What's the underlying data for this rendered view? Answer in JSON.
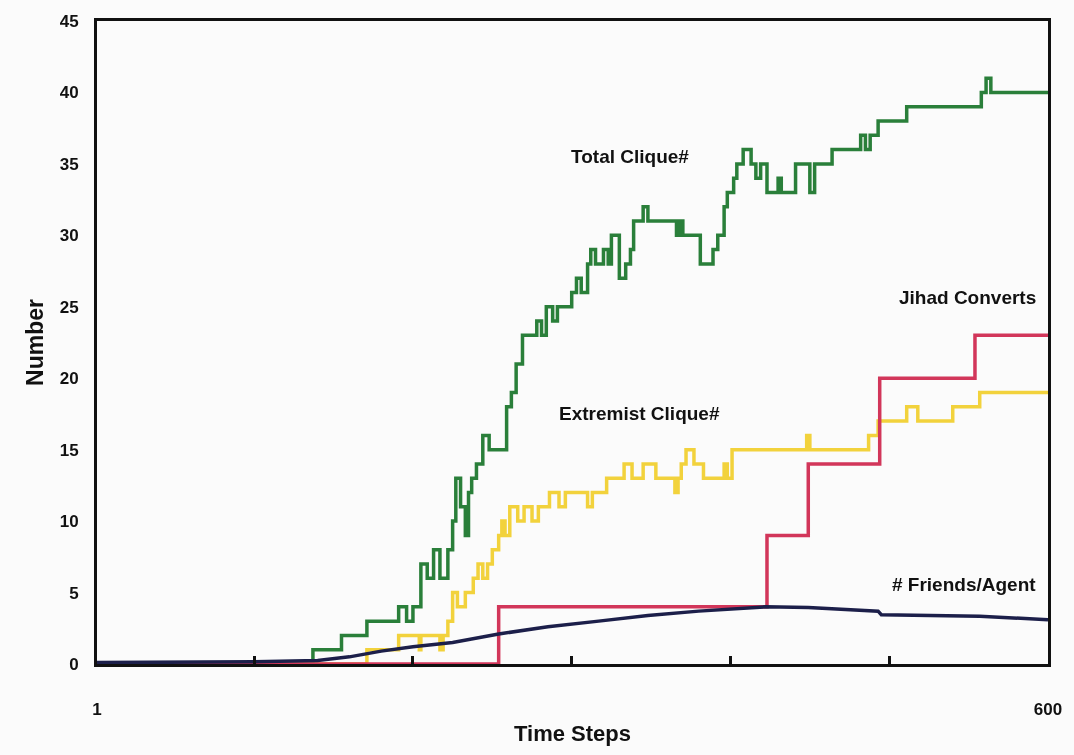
{
  "chart_data": {
    "type": "step",
    "xlabel": "Time Steps",
    "ylabel": "Number",
    "xlim": [
      1,
      600
    ],
    "xticks": [
      {
        "value": 1,
        "label": "1"
      },
      {
        "value": 100,
        "label": null
      },
      {
        "value": 200,
        "label": null
      },
      {
        "value": 300,
        "label": null
      },
      {
        "value": 400,
        "label": null
      },
      {
        "value": 500,
        "label": null
      },
      {
        "value": 600,
        "label": "600"
      }
    ],
    "ylim": [
      0,
      45
    ],
    "yticks": [
      0,
      5,
      10,
      15,
      20,
      25,
      30,
      35,
      40,
      45
    ],
    "legend": false,
    "marker": "none",
    "line_style": "solid",
    "series": [
      {
        "name": "Total Clique#",
        "color": "#2a7f3a",
        "x": [
          1,
          137,
          155,
          171,
          191,
          196,
          200,
          205,
          209,
          213,
          217,
          222,
          225,
          227,
          230,
          233,
          235,
          237,
          240,
          244,
          248,
          259,
          262,
          265,
          269,
          278,
          281,
          284,
          288,
          291,
          300,
          303,
          306,
          310,
          312,
          315,
          320,
          323,
          325,
          330,
          334,
          337,
          339,
          345,
          348,
          366,
          368,
          370,
          381,
          384,
          389,
          392,
          396,
          398,
          402,
          404,
          408,
          413,
          416,
          419,
          423,
          430,
          432,
          441,
          450,
          453,
          464,
          482,
          485,
          488,
          493,
          511,
          558,
          561,
          564,
          600
        ],
        "values": [
          0,
          1,
          2,
          3,
          4,
          3,
          4,
          7,
          6,
          8,
          6,
          8,
          10,
          13,
          11,
          9,
          12,
          13,
          14,
          16,
          15,
          18,
          19,
          21,
          23,
          24,
          23,
          25,
          24,
          25,
          26,
          27,
          26,
          28,
          29,
          28,
          29,
          28,
          30,
          27,
          28,
          29,
          31,
          32,
          31,
          30,
          31,
          30,
          28,
          28,
          29,
          30,
          32,
          33,
          34,
          35,
          36,
          35,
          34,
          35,
          33,
          34,
          33,
          35,
          33,
          35,
          36,
          37,
          36,
          37,
          38,
          39,
          40,
          41,
          40,
          40
        ]
      },
      {
        "name": "Extremist Clique#",
        "color": "#f2d23c",
        "x": [
          1,
          171,
          191,
          204,
          205,
          217,
          219,
          222,
          225,
          228,
          233,
          238,
          241,
          244,
          247,
          250,
          254,
          256,
          258,
          261,
          266,
          270,
          275,
          279,
          286,
          292,
          296,
          310,
          313,
          322,
          333,
          338,
          345,
          349,
          353,
          365,
          367,
          369,
          372,
          377,
          383,
          396,
          398,
          401,
          448,
          450,
          487,
          493,
          511,
          518,
          540,
          557,
          600
        ],
        "values": [
          0,
          1,
          2,
          1,
          2,
          1,
          2,
          3,
          5,
          4,
          5,
          6,
          7,
          6,
          7,
          8,
          9,
          10,
          9,
          11,
          10,
          11,
          10,
          11,
          12,
          11,
          12,
          11,
          12,
          13,
          14,
          13,
          14,
          14,
          13,
          12,
          13,
          14,
          15,
          14,
          13,
          14,
          13,
          15,
          16,
          15,
          16,
          17,
          18,
          17,
          18,
          19,
          19
        ]
      },
      {
        "name": "Jihad Converts",
        "color": "#d2365a",
        "x": [
          1,
          254,
          423,
          449,
          494,
          554,
          600
        ],
        "values": [
          0,
          4,
          9,
          14,
          20,
          23,
          23
        ]
      },
      {
        "name": "# Friends/Agent",
        "color": "#1c1f4a",
        "type": "line",
        "x": [
          1,
          100,
          140,
          160,
          180,
          200,
          225,
          254,
          285,
          317,
          348,
          380,
          422,
          449,
          493,
          495,
          557,
          600
        ],
        "values": [
          0.1,
          0.15,
          0.25,
          0.5,
          0.9,
          1.2,
          1.5,
          2.1,
          2.6,
          3.0,
          3.4,
          3.7,
          4.0,
          3.95,
          3.7,
          3.45,
          3.35,
          3.1
        ]
      }
    ]
  }
}
